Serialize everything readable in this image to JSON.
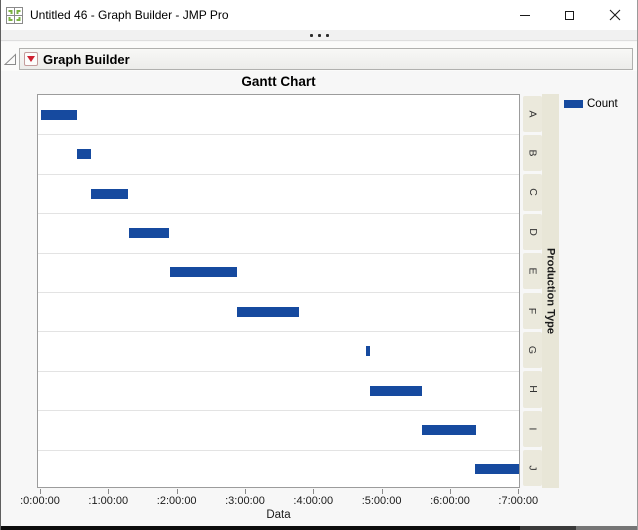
{
  "window": {
    "title": "Untitled 46 - Graph Builder - JMP Pro"
  },
  "report": {
    "header_title": "Graph Builder"
  },
  "chart_data": {
    "type": "bar",
    "subtype": "gantt",
    "title": "Gantt Chart",
    "xlabel": "Data",
    "right_axis_label": "Production Type",
    "legend": {
      "label": "Count",
      "color": "#164a9f",
      "position": "top-right"
    },
    "grid": "horizontal-only",
    "categories": [
      "A",
      "B",
      "C",
      "D",
      "E",
      "F",
      "G",
      "H",
      "I",
      "J"
    ],
    "x_ticks": [
      ":0:00:00",
      ":1:00:00",
      ":2:00:00",
      ":3:00:00",
      ":4:00:00",
      ":5:00:00",
      ":6:00:00",
      ":7:00:00"
    ],
    "x_tick_hours": [
      0,
      1,
      2,
      3,
      4,
      5,
      6,
      7
    ],
    "xlim_hours": [
      -0.05,
      7.05
    ],
    "bar_color": "#164a9f",
    "tasks": [
      {
        "category": "A",
        "start_hours": 0.0,
        "end_hours": 0.53
      },
      {
        "category": "B",
        "start_hours": 0.53,
        "end_hours": 0.73
      },
      {
        "category": "C",
        "start_hours": 0.73,
        "end_hours": 1.28
      },
      {
        "category": "D",
        "start_hours": 1.29,
        "end_hours": 1.88
      },
      {
        "category": "E",
        "start_hours": 1.88,
        "end_hours": 2.87
      },
      {
        "category": "F",
        "start_hours": 2.87,
        "end_hours": 3.78
      },
      {
        "category": "G",
        "start_hours": 4.76,
        "end_hours": 4.82
      },
      {
        "category": "H",
        "start_hours": 4.82,
        "end_hours": 5.58
      },
      {
        "category": "I",
        "start_hours": 5.58,
        "end_hours": 6.37
      },
      {
        "category": "J",
        "start_hours": 6.35,
        "end_hours": 7.0
      }
    ]
  },
  "colors": {
    "bar_blue": "#164a9f",
    "category_cell_bg": "#ebe9dc",
    "right_strip_bg": "#e8e6d7",
    "plot_bg": "#ffffff",
    "outer_bg": "#f7f7f7",
    "gridline": "#e3e3e3",
    "red_triangle": "#cf2030",
    "jmp_icon_green": "#7db343"
  }
}
